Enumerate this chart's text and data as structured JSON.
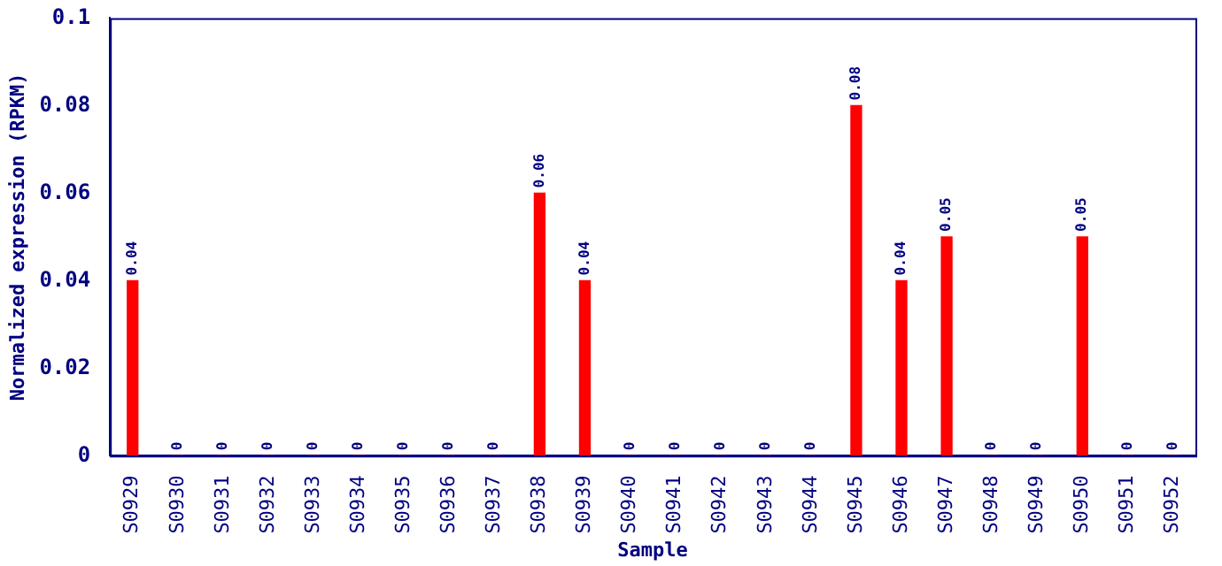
{
  "chart_data": {
    "type": "bar",
    "xlabel": "Sample",
    "ylabel": "Normalized expression (RPKM)",
    "categories": [
      "S0929",
      "S0930",
      "S0931",
      "S0932",
      "S0933",
      "S0934",
      "S0935",
      "S0936",
      "S0937",
      "S0938",
      "S0939",
      "S0940",
      "S0941",
      "S0942",
      "S0943",
      "S0944",
      "S0945",
      "S0946",
      "S0947",
      "S0948",
      "S0949",
      "S0950",
      "S0951",
      "S0952"
    ],
    "values": [
      0.04,
      0,
      0,
      0,
      0,
      0,
      0,
      0,
      0,
      0.06,
      0.04,
      0,
      0,
      0,
      0,
      0,
      0.08,
      0.04,
      0.05,
      0,
      0,
      0.05,
      0,
      0
    ],
    "color": "#ff0000",
    "ylim": [
      0,
      0.1
    ],
    "yticks": [
      0,
      0.02,
      0.04,
      0.06,
      0.08,
      0.1
    ],
    "grid": false,
    "legend": false,
    "data_labels": true
  }
}
